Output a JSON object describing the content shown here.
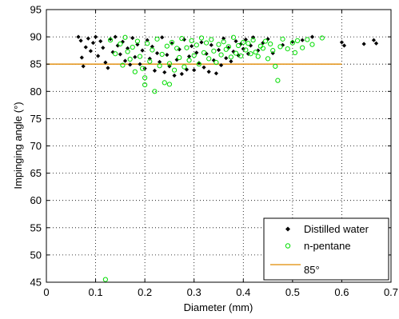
{
  "chart_data": {
    "type": "scatter",
    "title": "",
    "xlabel": "Diameter (mm)",
    "ylabel": "Impinging angle (°)",
    "xlim": [
      0,
      0.7
    ],
    "ylim": [
      45,
      95
    ],
    "xticks": [
      0,
      0.1,
      0.2,
      0.3,
      0.4,
      0.5,
      0.6,
      0.7
    ],
    "xtick_labels": [
      "0",
      "0.1",
      "0.2",
      "0.3",
      "0.4",
      "0.5",
      "0.6",
      "0.7"
    ],
    "yticks": [
      45,
      50,
      55,
      60,
      65,
      70,
      75,
      80,
      85,
      90,
      95
    ],
    "ytick_labels": [
      "45",
      "50",
      "55",
      "60",
      "65",
      "70",
      "75",
      "80",
      "85",
      "90",
      "95"
    ],
    "grid": true,
    "legend_position": "bottom-right",
    "series": [
      {
        "name": "Distilled water",
        "marker": "diamond",
        "color": "#000000",
        "points": [
          [
            0.065,
            90.0
          ],
          [
            0.07,
            89.3
          ],
          [
            0.072,
            86.2
          ],
          [
            0.075,
            84.6
          ],
          [
            0.08,
            88.1
          ],
          [
            0.085,
            89.7
          ],
          [
            0.09,
            87.4
          ],
          [
            0.095,
            88.9
          ],
          [
            0.1,
            90.0
          ],
          [
            0.105,
            86.5
          ],
          [
            0.11,
            89.2
          ],
          [
            0.115,
            88.0
          ],
          [
            0.12,
            85.3
          ],
          [
            0.125,
            84.3
          ],
          [
            0.13,
            89.6
          ],
          [
            0.135,
            87.2
          ],
          [
            0.14,
            90.0
          ],
          [
            0.145,
            88.4
          ],
          [
            0.15,
            86.8
          ],
          [
            0.155,
            89.1
          ],
          [
            0.16,
            85.6
          ],
          [
            0.165,
            87.9
          ],
          [
            0.17,
            84.9
          ],
          [
            0.175,
            89.8
          ],
          [
            0.18,
            86.3
          ],
          [
            0.185,
            88.6
          ],
          [
            0.19,
            85.0
          ],
          [
            0.195,
            87.5
          ],
          [
            0.2,
            84.2
          ],
          [
            0.205,
            89.4
          ],
          [
            0.21,
            86.0
          ],
          [
            0.215,
            88.2
          ],
          [
            0.22,
            83.8
          ],
          [
            0.225,
            87.0
          ],
          [
            0.23,
            85.4
          ],
          [
            0.235,
            89.9
          ],
          [
            0.24,
            83.5
          ],
          [
            0.245,
            86.7
          ],
          [
            0.25,
            84.6
          ],
          [
            0.255,
            88.8
          ],
          [
            0.26,
            82.9
          ],
          [
            0.265,
            85.8
          ],
          [
            0.27,
            87.7
          ],
          [
            0.275,
            83.2
          ],
          [
            0.28,
            89.5
          ],
          [
            0.285,
            84.0
          ],
          [
            0.29,
            86.4
          ],
          [
            0.295,
            88.3
          ],
          [
            0.3,
            83.9
          ],
          [
            0.305,
            87.1
          ],
          [
            0.31,
            85.2
          ],
          [
            0.315,
            89.0
          ],
          [
            0.32,
            84.4
          ],
          [
            0.325,
            86.9
          ],
          [
            0.33,
            83.6
          ],
          [
            0.335,
            88.5
          ],
          [
            0.34,
            85.7
          ],
          [
            0.345,
            83.3
          ],
          [
            0.35,
            87.6
          ],
          [
            0.355,
            84.8
          ],
          [
            0.36,
            89.7
          ],
          [
            0.365,
            86.1
          ],
          [
            0.37,
            88.0
          ],
          [
            0.375,
            85.5
          ],
          [
            0.38,
            87.3
          ],
          [
            0.385,
            89.2
          ],
          [
            0.39,
            86.6
          ],
          [
            0.395,
            88.7
          ],
          [
            0.4,
            87.8
          ],
          [
            0.405,
            89.5
          ],
          [
            0.41,
            86.9
          ],
          [
            0.415,
            88.4
          ],
          [
            0.42,
            89.9
          ],
          [
            0.43,
            87.5
          ],
          [
            0.44,
            88.9
          ],
          [
            0.45,
            89.6
          ],
          [
            0.46,
            87.0
          ],
          [
            0.48,
            88.5
          ],
          [
            0.5,
            89.1
          ],
          [
            0.52,
            89.4
          ],
          [
            0.54,
            90.0
          ],
          [
            0.6,
            89.0
          ],
          [
            0.605,
            88.4
          ],
          [
            0.645,
            88.7
          ],
          [
            0.665,
            89.4
          ],
          [
            0.67,
            88.8
          ]
        ]
      },
      {
        "name": "n-pentane",
        "marker": "circle",
        "color": "#00dd00",
        "points": [
          [
            0.12,
            45.5
          ],
          [
            0.13,
            89.4
          ],
          [
            0.14,
            86.9
          ],
          [
            0.15,
            88.7
          ],
          [
            0.155,
            84.8
          ],
          [
            0.16,
            89.9
          ],
          [
            0.165,
            87.3
          ],
          [
            0.17,
            85.9
          ],
          [
            0.175,
            88.1
          ],
          [
            0.18,
            83.6
          ],
          [
            0.185,
            89.2
          ],
          [
            0.19,
            86.4
          ],
          [
            0.195,
            84.2
          ],
          [
            0.2,
            81.2
          ],
          [
            0.205,
            88.8
          ],
          [
            0.21,
            85.5
          ],
          [
            0.215,
            87.6
          ],
          [
            0.22,
            80.0
          ],
          [
            0.225,
            89.6
          ],
          [
            0.23,
            84.7
          ],
          [
            0.235,
            86.8
          ],
          [
            0.24,
            81.6
          ],
          [
            0.245,
            88.3
          ],
          [
            0.25,
            85.1
          ],
          [
            0.255,
            89.0
          ],
          [
            0.26,
            83.9
          ],
          [
            0.265,
            87.9
          ],
          [
            0.27,
            86.2
          ],
          [
            0.275,
            89.7
          ],
          [
            0.28,
            84.5
          ],
          [
            0.285,
            88.0
          ],
          [
            0.29,
            85.7
          ],
          [
            0.295,
            89.3
          ],
          [
            0.3,
            86.6
          ],
          [
            0.305,
            88.5
          ],
          [
            0.31,
            85.0
          ],
          [
            0.315,
            89.8
          ],
          [
            0.32,
            87.1
          ],
          [
            0.325,
            88.9
          ],
          [
            0.33,
            86.0
          ],
          [
            0.335,
            89.5
          ],
          [
            0.34,
            87.4
          ],
          [
            0.345,
            85.3
          ],
          [
            0.35,
            88.6
          ],
          [
            0.355,
            86.7
          ],
          [
            0.36,
            89.1
          ],
          [
            0.365,
            87.7
          ],
          [
            0.37,
            88.2
          ],
          [
            0.375,
            86.3
          ],
          [
            0.38,
            89.9
          ],
          [
            0.385,
            87.0
          ],
          [
            0.39,
            88.4
          ],
          [
            0.395,
            86.5
          ],
          [
            0.4,
            89.0
          ],
          [
            0.405,
            87.6
          ],
          [
            0.41,
            88.8
          ],
          [
            0.415,
            86.9
          ],
          [
            0.42,
            89.4
          ],
          [
            0.425,
            87.2
          ],
          [
            0.43,
            86.4
          ],
          [
            0.435,
            88.3
          ],
          [
            0.44,
            87.9
          ],
          [
            0.445,
            89.2
          ],
          [
            0.45,
            86.0
          ],
          [
            0.455,
            88.7
          ],
          [
            0.46,
            87.5
          ],
          [
            0.465,
            84.6
          ],
          [
            0.47,
            82.0
          ],
          [
            0.475,
            88.2
          ],
          [
            0.48,
            89.6
          ],
          [
            0.49,
            87.8
          ],
          [
            0.5,
            88.9
          ],
          [
            0.505,
            87.1
          ],
          [
            0.51,
            89.3
          ],
          [
            0.52,
            88.0
          ],
          [
            0.53,
            89.5
          ],
          [
            0.54,
            88.6
          ],
          [
            0.56,
            89.8
          ],
          [
            0.2,
            82.5
          ],
          [
            0.25,
            81.3
          ]
        ]
      },
      {
        "name": "85°",
        "type": "line",
        "color": "#e08a00",
        "points": [
          [
            0.0,
            85.0
          ],
          [
            0.6,
            85.0
          ]
        ]
      }
    ]
  }
}
